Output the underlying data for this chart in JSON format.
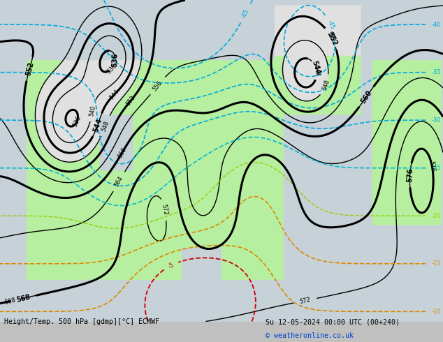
{
  "title_left": "Height/Temp. 500 hPa [gdmp][°C] ECMWF",
  "title_right": "Su 12-05-2024 00:00 UTC (00+240)",
  "copyright": "© weatheronline.co.uk",
  "fig_width": 6.34,
  "fig_height": 4.9,
  "dpi": 100,
  "ocean_color": [
    0.78,
    0.82,
    0.85
  ],
  "land_color": [
    0.88,
    0.88,
    0.88
  ],
  "green_color": [
    0.72,
    0.94,
    0.63
  ],
  "gray_color": [
    0.78,
    0.78,
    0.78
  ]
}
